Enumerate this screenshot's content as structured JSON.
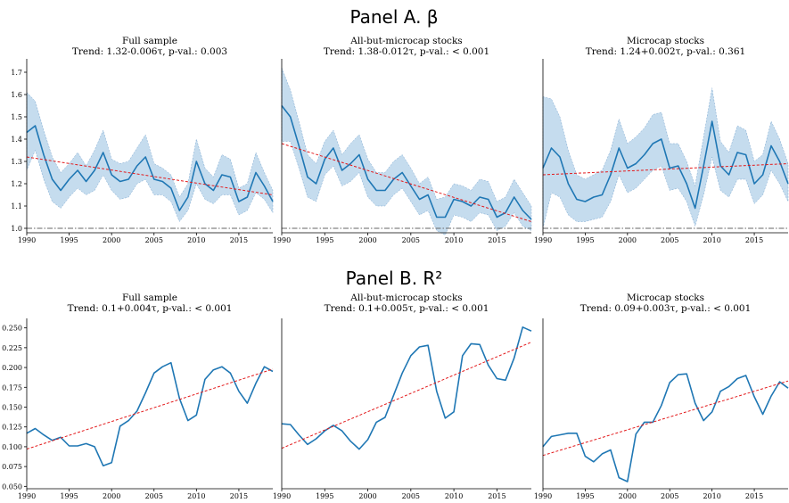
{
  "panels": [
    {
      "title": "Panel A. β"
    },
    {
      "title": "Panel B. R²"
    }
  ],
  "colors": {
    "line": "#1f77b4",
    "band": "#c5dcee",
    "band_edge": "#7aa6cf",
    "trend": "#e31a1c",
    "reference": "#666666"
  },
  "chart_data": [
    {
      "type": "line",
      "panel": 0,
      "title": "Full sample",
      "subtitle": "Trend: 1.32-0.006τ, p-val.: 0.003",
      "x": [
        1990,
        1991,
        1992,
        1993,
        1994,
        1995,
        1996,
        1997,
        1998,
        1999,
        2000,
        2001,
        2002,
        2003,
        2004,
        2005,
        2006,
        2007,
        2008,
        2009,
        2010,
        2011,
        2012,
        2013,
        2014,
        2015,
        2016,
        2017,
        2018,
        2019
      ],
      "values": [
        1.43,
        1.46,
        1.33,
        1.22,
        1.17,
        1.22,
        1.26,
        1.21,
        1.26,
        1.34,
        1.24,
        1.21,
        1.22,
        1.28,
        1.32,
        1.22,
        1.21,
        1.18,
        1.08,
        1.14,
        1.3,
        1.2,
        1.17,
        1.24,
        1.23,
        1.12,
        1.14,
        1.25,
        1.19,
        1.12
      ],
      "lower": [
        1.26,
        1.35,
        1.22,
        1.12,
        1.09,
        1.14,
        1.18,
        1.15,
        1.17,
        1.24,
        1.17,
        1.13,
        1.14,
        1.2,
        1.22,
        1.15,
        1.15,
        1.12,
        1.03,
        1.08,
        1.2,
        1.13,
        1.11,
        1.15,
        1.15,
        1.06,
        1.08,
        1.16,
        1.13,
        1.07
      ],
      "upper": [
        1.61,
        1.57,
        1.44,
        1.32,
        1.25,
        1.29,
        1.34,
        1.28,
        1.35,
        1.44,
        1.31,
        1.29,
        1.3,
        1.36,
        1.42,
        1.29,
        1.27,
        1.24,
        1.14,
        1.2,
        1.4,
        1.27,
        1.23,
        1.33,
        1.31,
        1.18,
        1.2,
        1.34,
        1.25,
        1.17
      ],
      "trend": [
        1.32,
        1.15
      ],
      "reference": 1.0,
      "xlim": [
        1990,
        2019
      ],
      "ylim": [
        0.98,
        1.76
      ],
      "xticks": [
        1990,
        1995,
        2000,
        2005,
        2010,
        2015
      ],
      "yticks": [
        1.0,
        1.1,
        1.2,
        1.3,
        1.4,
        1.5,
        1.6,
        1.7
      ],
      "ytick_labels": [
        "1.0",
        "1.1",
        "1.2",
        "1.3",
        "1.4",
        "1.5",
        "1.6",
        "1.7"
      ],
      "band": true
    },
    {
      "type": "line",
      "panel": 0,
      "title": "All-but-microcap stocks",
      "subtitle": "Trend: 1.38-0.012τ, p-val.: < 0.001",
      "x": [
        1990,
        1991,
        1992,
        1993,
        1994,
        1995,
        1996,
        1997,
        1998,
        1999,
        2000,
        2001,
        2002,
        2003,
        2004,
        2005,
        2006,
        2007,
        2008,
        2009,
        2010,
        2011,
        2012,
        2013,
        2014,
        2015,
        2016,
        2017,
        2018,
        2019
      ],
      "values": [
        1.55,
        1.5,
        1.37,
        1.23,
        1.2,
        1.31,
        1.36,
        1.26,
        1.29,
        1.33,
        1.22,
        1.17,
        1.17,
        1.22,
        1.25,
        1.19,
        1.13,
        1.15,
        1.05,
        1.05,
        1.13,
        1.12,
        1.1,
        1.14,
        1.13,
        1.05,
        1.07,
        1.14,
        1.08,
        1.04
      ],
      "lower": [
        1.39,
        1.39,
        1.27,
        1.14,
        1.12,
        1.24,
        1.28,
        1.19,
        1.21,
        1.25,
        1.14,
        1.1,
        1.1,
        1.15,
        1.18,
        1.12,
        1.06,
        1.08,
        0.99,
        0.97,
        1.06,
        1.05,
        1.03,
        1.07,
        1.06,
        0.99,
        1.01,
        1.07,
        1.01,
        0.99
      ],
      "upper": [
        1.72,
        1.62,
        1.48,
        1.33,
        1.29,
        1.39,
        1.44,
        1.33,
        1.38,
        1.42,
        1.31,
        1.25,
        1.25,
        1.3,
        1.33,
        1.27,
        1.2,
        1.23,
        1.13,
        1.14,
        1.2,
        1.19,
        1.17,
        1.22,
        1.21,
        1.12,
        1.14,
        1.22,
        1.16,
        1.1
      ],
      "trend": [
        1.38,
        1.03
      ],
      "reference": 1.0,
      "xlim": [
        1990,
        2019
      ],
      "ylim": [
        0.98,
        1.76
      ],
      "xticks": [
        1990,
        1995,
        2000,
        2005,
        2010,
        2015
      ],
      "yticks": [],
      "ytick_labels": [],
      "band": true
    },
    {
      "type": "line",
      "panel": 0,
      "title": "Microcap stocks",
      "subtitle": "Trend: 1.24+0.002τ, p-val.: 0.361",
      "x": [
        1990,
        1991,
        1992,
        1993,
        1994,
        1995,
        1996,
        1997,
        1998,
        1999,
        2000,
        2001,
        2002,
        2003,
        2004,
        2005,
        2006,
        2007,
        2008,
        2009,
        2010,
        2011,
        2012,
        2013,
        2014,
        2015,
        2016,
        2017,
        2018,
        2019
      ],
      "values": [
        1.27,
        1.36,
        1.32,
        1.2,
        1.13,
        1.12,
        1.14,
        1.15,
        1.24,
        1.36,
        1.27,
        1.29,
        1.33,
        1.38,
        1.4,
        1.27,
        1.28,
        1.2,
        1.09,
        1.28,
        1.48,
        1.28,
        1.24,
        1.34,
        1.33,
        1.2,
        1.24,
        1.37,
        1.3,
        1.2
      ],
      "lower": [
        1.0,
        1.16,
        1.14,
        1.06,
        1.03,
        1.03,
        1.04,
        1.05,
        1.12,
        1.24,
        1.16,
        1.18,
        1.22,
        1.26,
        1.28,
        1.17,
        1.18,
        1.12,
        1.01,
        1.15,
        1.32,
        1.17,
        1.14,
        1.22,
        1.22,
        1.11,
        1.15,
        1.26,
        1.2,
        1.12
      ],
      "upper": [
        1.59,
        1.58,
        1.5,
        1.35,
        1.24,
        1.22,
        1.24,
        1.26,
        1.35,
        1.49,
        1.38,
        1.41,
        1.45,
        1.51,
        1.52,
        1.38,
        1.38,
        1.3,
        1.19,
        1.41,
        1.63,
        1.39,
        1.34,
        1.46,
        1.44,
        1.3,
        1.33,
        1.48,
        1.4,
        1.29
      ],
      "trend": [
        1.24,
        1.29
      ],
      "reference": 1.0,
      "xlim": [
        1990,
        2019
      ],
      "ylim": [
        0.98,
        1.76
      ],
      "xticks": [
        1990,
        1995,
        2000,
        2005,
        2010,
        2015
      ],
      "yticks": [],
      "ytick_labels": [],
      "band": true
    },
    {
      "type": "line",
      "panel": 1,
      "title": "Full sample",
      "subtitle": "Trend: 0.1+0.004τ, p-val.: < 0.001",
      "x": [
        1990,
        1991,
        1992,
        1993,
        1994,
        1995,
        1996,
        1997,
        1998,
        1999,
        2000,
        2001,
        2002,
        2003,
        2004,
        2005,
        2006,
        2007,
        2008,
        2009,
        2010,
        2011,
        2012,
        2013,
        2014,
        2015,
        2016,
        2017,
        2018,
        2019
      ],
      "values": [
        0.117,
        0.123,
        0.115,
        0.108,
        0.112,
        0.101,
        0.101,
        0.104,
        0.1,
        0.076,
        0.08,
        0.126,
        0.133,
        0.145,
        0.168,
        0.193,
        0.201,
        0.206,
        0.161,
        0.133,
        0.14,
        0.185,
        0.197,
        0.201,
        0.193,
        0.17,
        0.155,
        0.18,
        0.201,
        0.195
      ],
      "trend": [
        0.097,
        0.198
      ],
      "xlim": [
        1990,
        2019
      ],
      "ylim": [
        0.047,
        0.262
      ],
      "xticks": [
        1990,
        1995,
        2000,
        2005,
        2010,
        2015
      ],
      "yticks": [
        0.05,
        0.075,
        0.1,
        0.125,
        0.15,
        0.175,
        0.2,
        0.225,
        0.25
      ],
      "ytick_labels": [
        "0.050",
        "0.075",
        "0.100",
        "0.125",
        "0.150",
        "0.175",
        "0.200",
        "0.225",
        "0.250"
      ],
      "band": false
    },
    {
      "type": "line",
      "panel": 1,
      "title": "All-but-microcap stocks",
      "subtitle": "Trend: 0.1+0.005τ, p-val.: < 0.001",
      "x": [
        1990,
        1991,
        1992,
        1993,
        1994,
        1995,
        1996,
        1997,
        1998,
        1999,
        2000,
        2001,
        2002,
        2003,
        2004,
        2005,
        2006,
        2007,
        2008,
        2009,
        2010,
        2011,
        2012,
        2013,
        2014,
        2015,
        2016,
        2017,
        2018,
        2019
      ],
      "values": [
        0.129,
        0.128,
        0.115,
        0.103,
        0.11,
        0.12,
        0.127,
        0.12,
        0.107,
        0.097,
        0.109,
        0.131,
        0.137,
        0.165,
        0.193,
        0.215,
        0.226,
        0.228,
        0.17,
        0.136,
        0.144,
        0.215,
        0.23,
        0.229,
        0.203,
        0.186,
        0.184,
        0.212,
        0.251,
        0.246
      ],
      "trend": [
        0.098,
        0.232
      ],
      "xlim": [
        1990,
        2019
      ],
      "ylim": [
        0.047,
        0.262
      ],
      "xticks": [
        1990,
        1995,
        2000,
        2005,
        2010,
        2015
      ],
      "yticks": [],
      "ytick_labels": [],
      "band": false
    },
    {
      "type": "line",
      "panel": 1,
      "title": "Microcap stocks",
      "subtitle": "Trend: 0.09+0.003τ, p-val.: < 0.001",
      "x": [
        1990,
        1991,
        1992,
        1993,
        1994,
        1995,
        1996,
        1997,
        1998,
        1999,
        2000,
        2001,
        2002,
        2003,
        2004,
        2005,
        2006,
        2007,
        2008,
        2009,
        2010,
        2011,
        2012,
        2013,
        2014,
        2015,
        2016,
        2017,
        2018,
        2019
      ],
      "values": [
        0.1,
        0.113,
        0.115,
        0.117,
        0.117,
        0.088,
        0.081,
        0.091,
        0.096,
        0.061,
        0.056,
        0.116,
        0.131,
        0.131,
        0.152,
        0.181,
        0.191,
        0.192,
        0.155,
        0.133,
        0.144,
        0.17,
        0.176,
        0.186,
        0.19,
        0.163,
        0.141,
        0.164,
        0.182,
        0.174
      ],
      "trend": [
        0.089,
        0.183
      ],
      "xlim": [
        1990,
        2019
      ],
      "ylim": [
        0.047,
        0.262
      ],
      "xticks": [
        1990,
        1995,
        2000,
        2005,
        2010,
        2015
      ],
      "yticks": [],
      "ytick_labels": [],
      "band": false
    }
  ]
}
